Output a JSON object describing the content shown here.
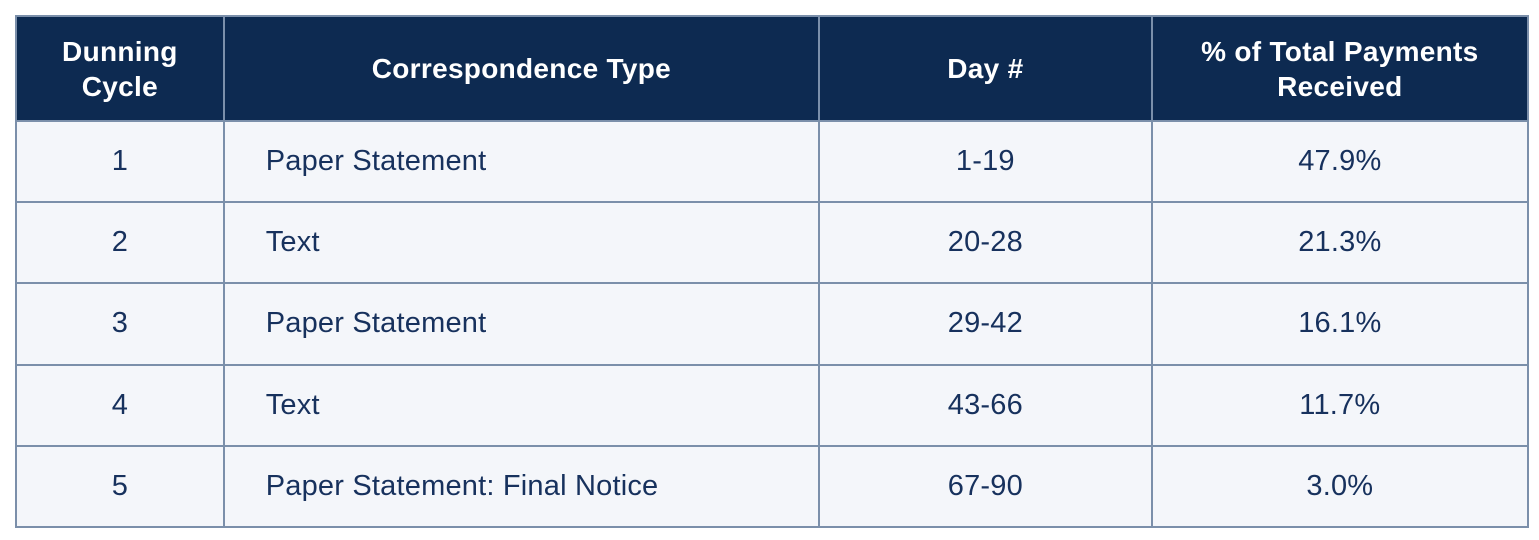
{
  "chart_data": {
    "type": "table",
    "title": "",
    "columns": [
      "Dunning Cycle",
      "Correspondence Type",
      "Day #",
      "% of Total Payments Received"
    ],
    "rows": [
      [
        "1",
        "Paper Statement",
        "1-19",
        "47.9%"
      ],
      [
        "2",
        "Text",
        "20-28",
        "21.3%"
      ],
      [
        "3",
        "Paper Statement",
        "29-42",
        "16.1%"
      ],
      [
        "4",
        "Text",
        "43-66",
        "11.7%"
      ],
      [
        "5",
        "Paper Statement: Final Notice",
        "67-90",
        "3.0%"
      ]
    ],
    "percent_values": [
      47.9,
      21.3,
      16.1,
      11.7,
      3.0
    ],
    "day_ranges": [
      [
        1,
        19
      ],
      [
        20,
        28
      ],
      [
        29,
        42
      ],
      [
        43,
        66
      ],
      [
        67,
        90
      ]
    ]
  },
  "colors": {
    "header_bg": "#0d2a51",
    "header_text": "#ffffff",
    "row_bg": "#f4f6fa",
    "border": "#7b8faa",
    "cell_text": "#17315d",
    "page_bg": "#ffffff"
  }
}
